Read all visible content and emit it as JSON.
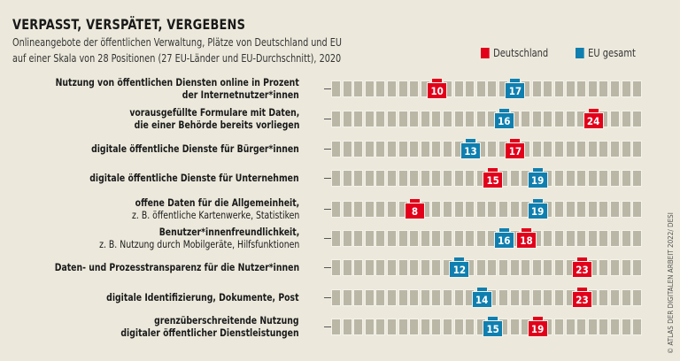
{
  "title": "VERPASST, VERSPÄTET, VERGEBENS",
  "subtitle_lines": [
    "Onlineangebote der öffentlichen Verwaltung, Plätze von Deutschland und EU",
    "auf einer Skala von 28 Positionen (27 EU-Länder und EU-Durchschnitt), 2020"
  ],
  "credit": "© ATLAS DER DIGITALEN ARBEIT 2022/ DESI",
  "chart_data": {
    "type": "scatter",
    "scale_positions": 28,
    "colors": {
      "Deutschland": "#e2001a",
      "EU gesamt": "#0f7fb0",
      "cell": "#bab7a6",
      "background": "#ece9dc"
    },
    "legend": [
      {
        "name": "Deutschland",
        "color": "#e2001a"
      },
      {
        "name": "EU gesamt",
        "color": "#0f7fb0"
      }
    ],
    "legend_placement": "top-right",
    "categories": [
      {
        "line1": "Nutzung von öffentlichen Diensten online in Prozent",
        "line2": "der Internetnutzer*innen",
        "bold2": true,
        "de": 10,
        "eu": 17
      },
      {
        "line1": "vorausgefüllte Formulare mit Daten,",
        "line2": "die einer Behörde bereits vorliegen",
        "bold2": true,
        "de": 24,
        "eu": 16
      },
      {
        "line1": "digitale öffentliche Dienste für Bürger*innen",
        "line2": "",
        "de": 17,
        "eu": 13
      },
      {
        "line1": "digitale öffentliche Dienste für Unternehmen",
        "line2": "",
        "de": 15,
        "eu": 19
      },
      {
        "line1": "offene Daten für die Allgemeinheit,",
        "line2": "z. B. öffentliche Kartenwerke, Statistiken",
        "bold2": false,
        "de": 8,
        "eu": 19
      },
      {
        "line1": "Benutzer*innenfreundlichkeit,",
        "line2": "z. B. Nutzung durch Mobilgeräte, Hilfsfunktionen",
        "bold2": false,
        "de": 18,
        "eu": 16
      },
      {
        "line1": "Daten- und Prozesstransparenz für die Nutzer*innen",
        "line2": "",
        "de": 23,
        "eu": 12
      },
      {
        "line1": "digitale Identifizierung, Dokumente, Post",
        "line2": "",
        "de": 23,
        "eu": 14
      },
      {
        "line1": "grenzüberschreitende Nutzung",
        "line2": "digitaler öffentlicher Dienstleistungen",
        "bold2": true,
        "de": 19,
        "eu": 15
      }
    ]
  }
}
